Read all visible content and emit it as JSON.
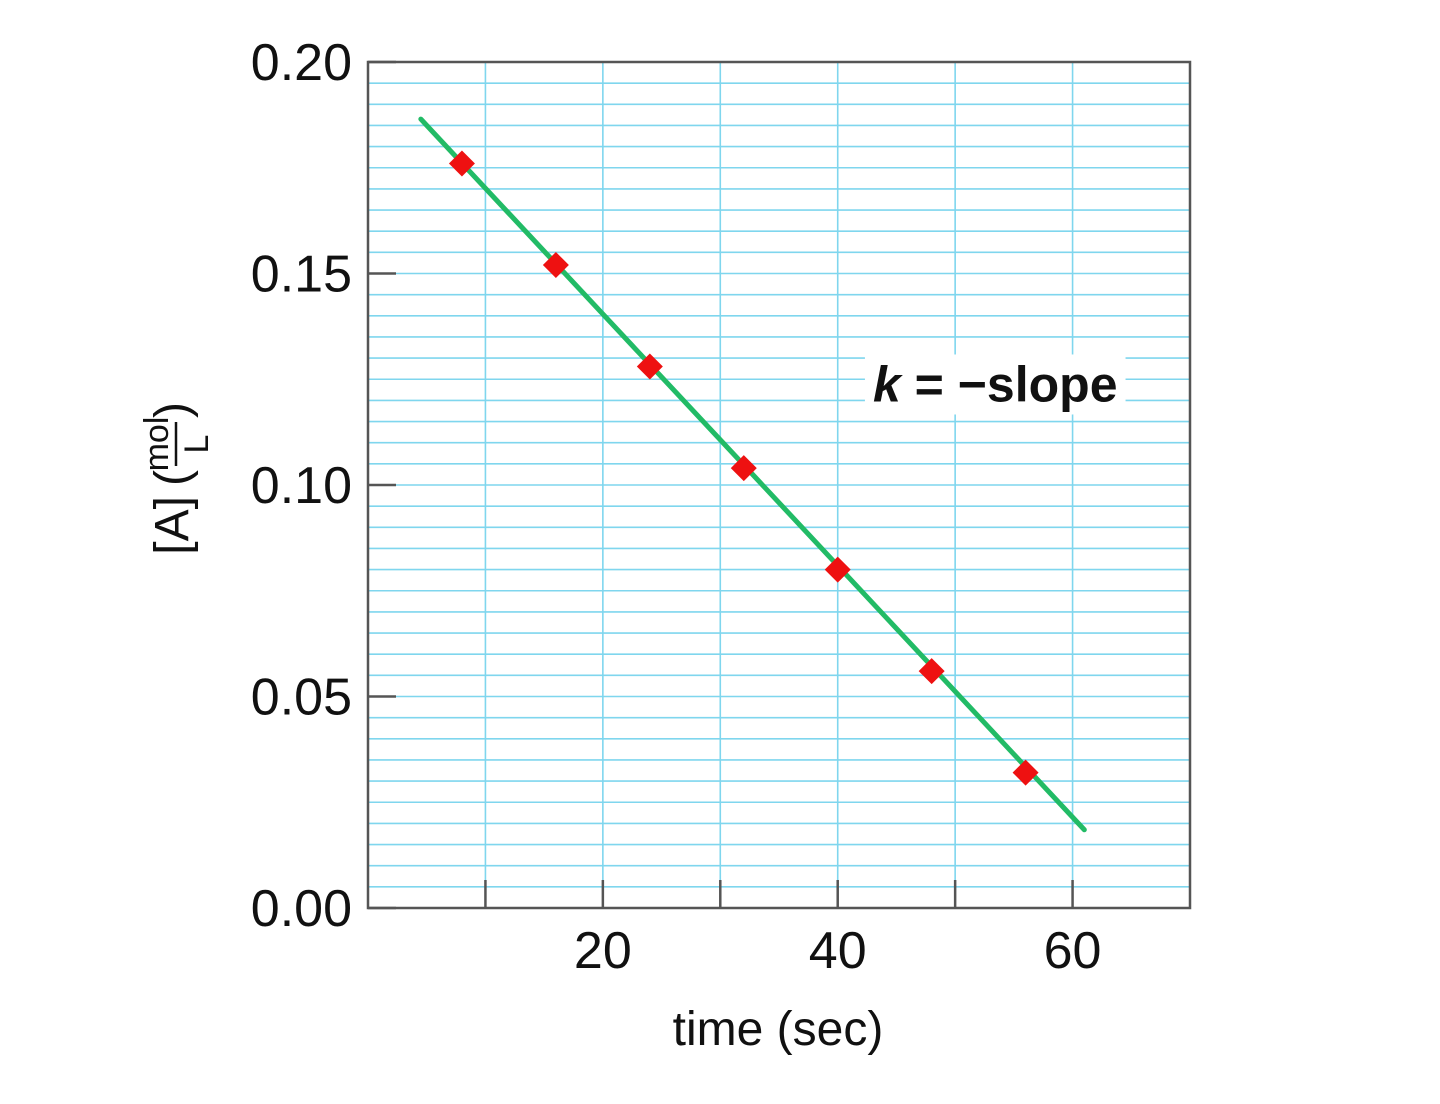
{
  "chart_data": {
    "type": "scatter",
    "x": [
      8,
      16,
      24,
      32,
      40,
      48,
      56
    ],
    "y": [
      0.176,
      0.152,
      0.128,
      0.104,
      0.08,
      0.056,
      0.032
    ],
    "fit_line": {
      "x": [
        4.5,
        61
      ],
      "y": [
        0.1865,
        0.0185
      ]
    },
    "xlabel": "time (sec)",
    "ylabel": "[A]",
    "ylabel_unit": {
      "numerator": "mol",
      "denominator": "L"
    },
    "xlim": [
      0,
      70
    ],
    "ylim": [
      0,
      0.2
    ],
    "x_ticks": [
      20,
      40,
      60
    ],
    "x_tick_labels": [
      "20",
      "40",
      "60"
    ],
    "y_ticks": [
      0,
      0.05,
      0.1,
      0.15,
      0.2
    ],
    "y_tick_labels": [
      "0.00",
      "0.05",
      "0.10",
      "0.15",
      "0.20"
    ],
    "annotation": {
      "k": "k",
      "rest": " = −slope",
      "x": 43,
      "y": 0.124
    },
    "grid": true,
    "colors": {
      "grid": "#7fd6ee",
      "axis": "#555555",
      "line": "#22bb66",
      "marker": "#ee1111"
    }
  }
}
